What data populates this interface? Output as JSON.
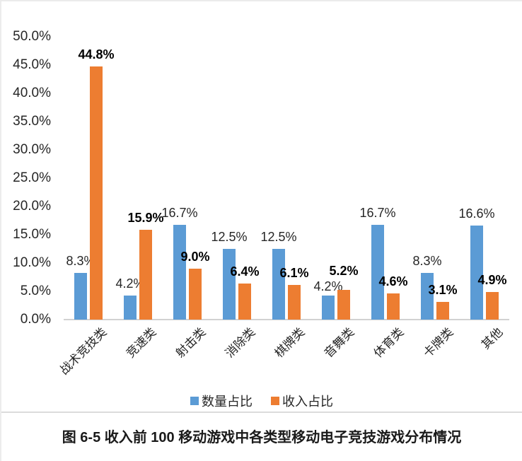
{
  "figure": {
    "caption": "图 6-5 收入前 100 移动游戏中各类型移动电子竞技游戏分布情况"
  },
  "legend": {
    "items": [
      {
        "label": "数量占比",
        "color": "#5B9BD5"
      },
      {
        "label": "收入占比",
        "color": "#ED7D31"
      }
    ]
  },
  "chart_data": {
    "type": "bar",
    "categories": [
      "战术竞技类",
      "竞速类",
      "射击类",
      "消除类",
      "棋牌类",
      "音舞类",
      "体育类",
      "卡牌类",
      "其他"
    ],
    "series": [
      {
        "name": "数量占比",
        "color": "#5B9BD5",
        "values": [
          8.3,
          4.2,
          16.7,
          12.5,
          12.5,
          4.2,
          16.7,
          8.3,
          16.6
        ],
        "labels_bold": false
      },
      {
        "name": "收入占比",
        "color": "#ED7D31",
        "values": [
          44.8,
          15.9,
          9.0,
          6.4,
          6.1,
          5.2,
          4.6,
          3.1,
          4.9
        ],
        "labels_bold": true
      }
    ],
    "label_format": "0.0%",
    "y_axis": {
      "ticks": [
        "50.0%",
        "45.0%",
        "40.0%",
        "35.0%",
        "30.0%",
        "25.0%",
        "20.0%",
        "15.0%",
        "10.0%",
        "5.0%",
        "0.0%"
      ],
      "min": 0,
      "max": 50,
      "step": 5
    },
    "grid": false,
    "legend_position": "bottom",
    "title": "",
    "xlabel": "",
    "ylabel": ""
  }
}
